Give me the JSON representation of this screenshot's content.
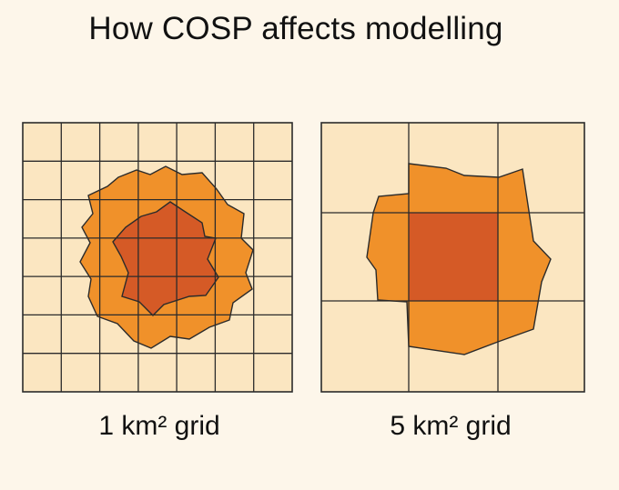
{
  "title": "How COSP affects modelling",
  "panels": [
    {
      "caption": "1 km² grid",
      "grid_cells": 7
    },
    {
      "caption": "5 km² grid",
      "grid_cells": 3
    }
  ],
  "colors": {
    "background": "#fdf6ea",
    "cell_fill": "#fbe6c1",
    "grid_line": "#2b2b2b",
    "outer_region": "#f0912a",
    "inner_region": "#d55a26",
    "title_text": "#111111"
  }
}
